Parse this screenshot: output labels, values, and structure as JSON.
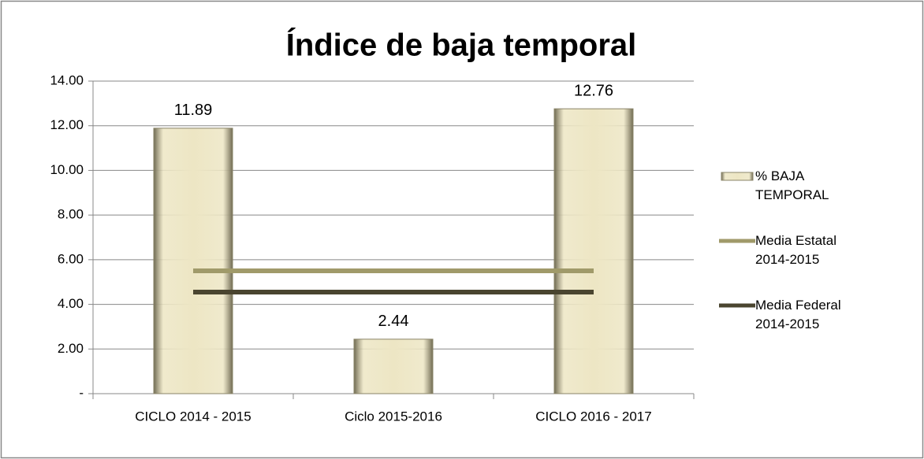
{
  "chart_data": {
    "type": "bar",
    "title": "Índice de baja temporal",
    "categories": [
      "CICLO 2014 - 2015",
      "Ciclo 2015-2016",
      "CICLO 2016 - 2017"
    ],
    "series": [
      {
        "name": "% BAJA TEMPORAL",
        "type": "bar",
        "color": "#ede6c4",
        "values": [
          11.89,
          2.44,
          12.76
        ]
      },
      {
        "name": "Media Estatal 2014-2015",
        "type": "line",
        "color": "#a09a6a",
        "values": [
          5.5,
          5.5,
          5.5
        ]
      },
      {
        "name": "Media Federal 2014-2015",
        "type": "line",
        "color": "#4a4530",
        "values": [
          4.55,
          4.55,
          4.55
        ]
      }
    ],
    "ylim": [
      0,
      14
    ],
    "yticks": [
      {
        "value": 0,
        "label": "-"
      },
      {
        "value": 2,
        "label": "2.00"
      },
      {
        "value": 4,
        "label": "4.00"
      },
      {
        "value": 6,
        "label": "6.00"
      },
      {
        "value": 8,
        "label": "8.00"
      },
      {
        "value": 10,
        "label": "10.00"
      },
      {
        "value": 12,
        "label": "12.00"
      },
      {
        "value": 14,
        "label": "14.00"
      }
    ],
    "grid": true,
    "legend": "right"
  }
}
